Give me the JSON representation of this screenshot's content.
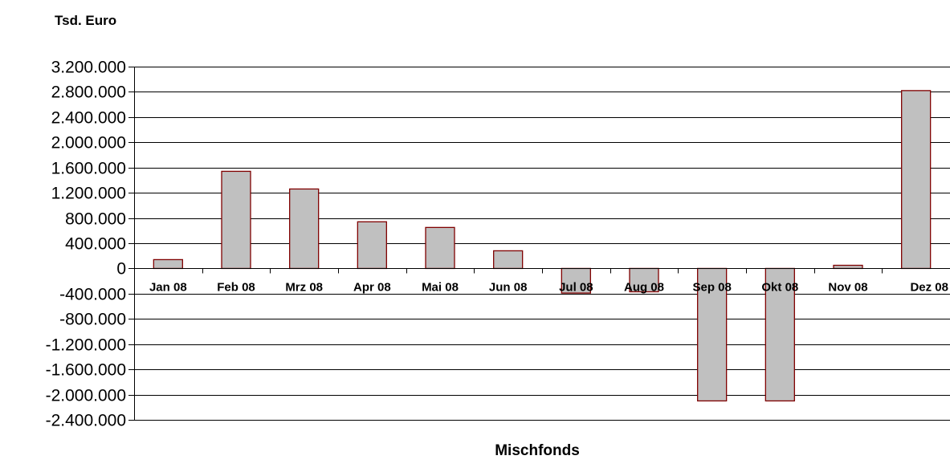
{
  "chart_data": {
    "type": "bar",
    "ylabel": "Tsd. Euro",
    "xlabel": "Mischfonds",
    "categories": [
      "Jan 08",
      "Feb 08",
      "Mrz 08",
      "Apr 08",
      "Mai 08",
      "Jun 08",
      "Jul 08",
      "Aug 08",
      "Sep 08",
      "Okt 08",
      "Nov 08",
      "Dez 08"
    ],
    "values": [
      140000,
      1540000,
      1260000,
      740000,
      650000,
      280000,
      -390000,
      -370000,
      -2100000,
      -2100000,
      50000,
      2820000
    ],
    "ylim": [
      -2400000,
      3200000
    ],
    "yticks": [
      3200000,
      2800000,
      2400000,
      2000000,
      1600000,
      1200000,
      800000,
      400000,
      0,
      -400000,
      -800000,
      -1200000,
      -1600000,
      -2000000,
      -2400000
    ],
    "ytick_labels": [
      "3.200.000",
      "2.800.000",
      "2.400.000",
      "2.000.000",
      "1.600.000",
      "1.200.000",
      "800.000",
      "400.000",
      "0",
      "-400.000",
      "-800.000",
      "-1.200.000",
      "-1.600.000",
      "-2.000.000",
      "-2.400.000"
    ],
    "grid": true,
    "colors": {
      "bar_fill": "#c0c0c0",
      "bar_stroke": "#800000",
      "grid": "#000000"
    }
  }
}
